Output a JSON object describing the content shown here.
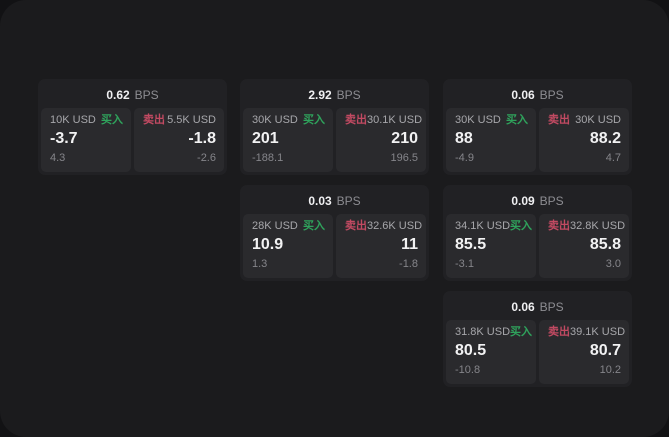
{
  "window": {
    "bg_color": "#1b1b1d",
    "backdrop_color": "#121214"
  },
  "terms": {
    "bps_unit": "BPS",
    "buy_label": "买入",
    "sell_label": "卖出"
  },
  "colors": {
    "buy_green": "#2fa35c",
    "sell_red": "#c24a62",
    "card_bg": "#212124",
    "panel_bg": "#2a2a2d",
    "value_white": "#f2f2f3",
    "muted_gray": "#85858a",
    "label_gray": "#a7a7ab"
  },
  "cards": [
    {
      "row": 1,
      "col": 1,
      "bps": "0.62",
      "buy": {
        "amount": "10K USD",
        "price": "-3.7",
        "delta": "4.3"
      },
      "sell": {
        "amount": "5.5K USD",
        "price": "-1.8",
        "delta": "-2.6"
      }
    },
    {
      "row": 1,
      "col": 2,
      "bps": "2.92",
      "buy": {
        "amount": "30K USD",
        "price": "201",
        "delta": "-188.1"
      },
      "sell": {
        "amount": "30.1K USD",
        "price": "210",
        "delta": "196.5"
      }
    },
    {
      "row": 1,
      "col": 3,
      "bps": "0.06",
      "buy": {
        "amount": "30K USD",
        "price": "88",
        "delta": "-4.9"
      },
      "sell": {
        "amount": "30K USD",
        "price": "88.2",
        "delta": "4.7"
      }
    },
    {
      "row": 2,
      "col": 2,
      "bps": "0.03",
      "buy": {
        "amount": "28K USD",
        "price": "10.9",
        "delta": "1.3"
      },
      "sell": {
        "amount": "32.6K USD",
        "price": "11",
        "delta": "-1.8"
      }
    },
    {
      "row": 2,
      "col": 3,
      "bps": "0.09",
      "buy": {
        "amount": "34.1K USD",
        "price": "85.5",
        "delta": "-3.1"
      },
      "sell": {
        "amount": "32.8K USD",
        "price": "85.8",
        "delta": "3.0"
      }
    },
    {
      "row": 3,
      "col": 3,
      "bps": "0.06",
      "buy": {
        "amount": "31.8K USD",
        "price": "80.5",
        "delta": "-10.8"
      },
      "sell": {
        "amount": "39.1K USD",
        "price": "80.7",
        "delta": "10.2"
      }
    }
  ]
}
